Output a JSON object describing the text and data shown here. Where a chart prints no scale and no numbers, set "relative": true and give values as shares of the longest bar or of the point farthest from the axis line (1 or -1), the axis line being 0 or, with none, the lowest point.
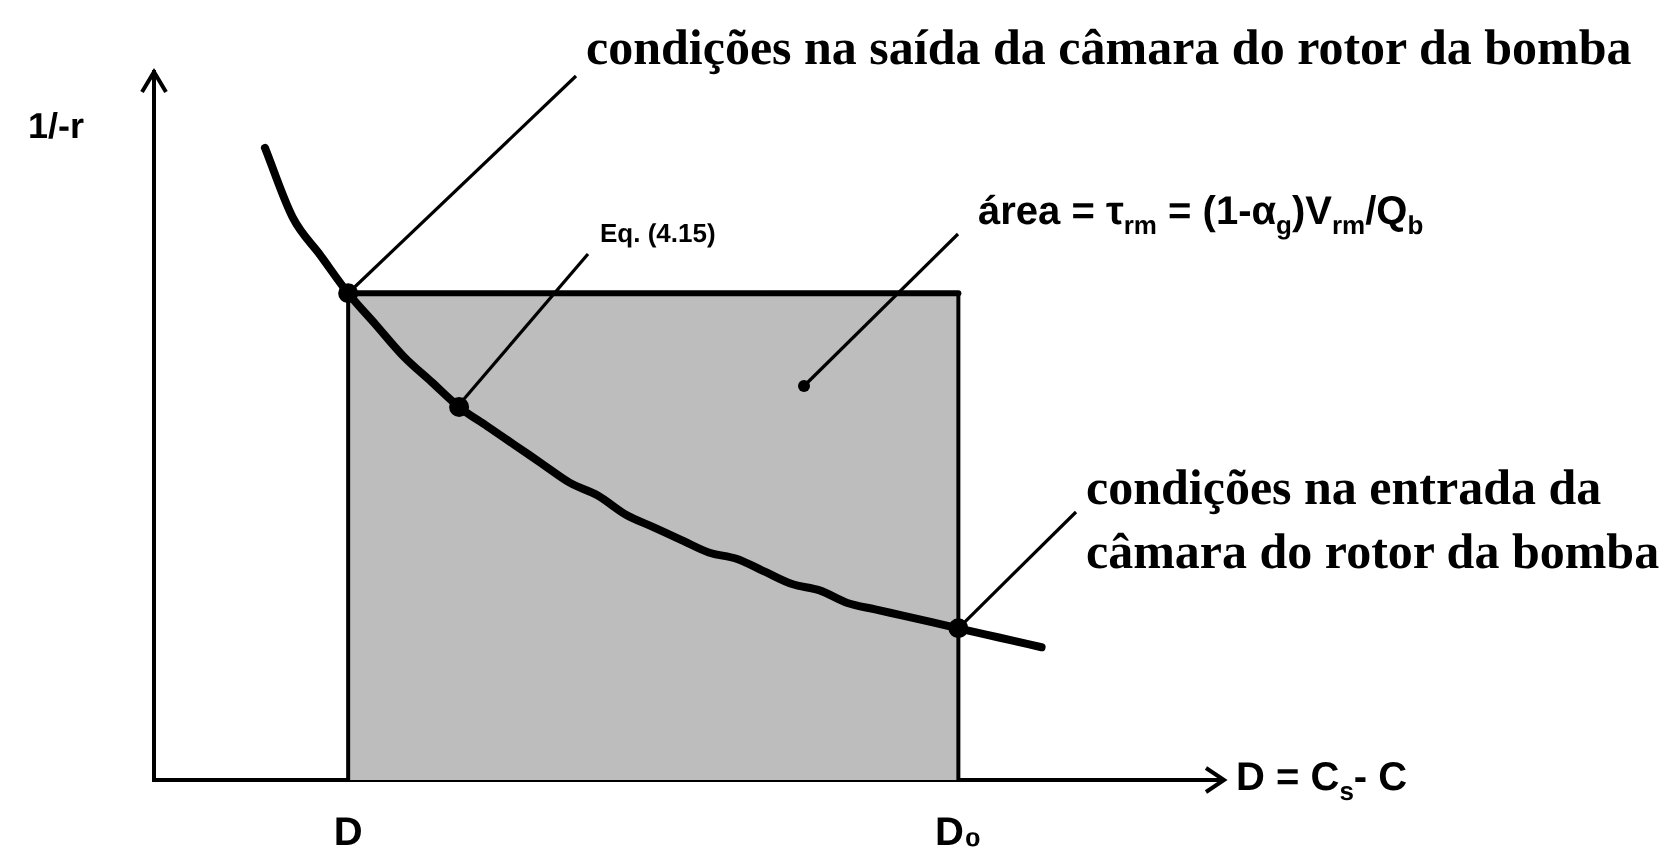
{
  "chart_data": {
    "type": "line",
    "relative": true,
    "xlabel": "D = C$_{s}$- C",
    "ylabel": "1/-r",
    "categories": [
      null,
      null,
      null,
      null,
      null,
      null,
      null,
      "D",
      null,
      null,
      null,
      null,
      null,
      null,
      null,
      null,
      null,
      null,
      null,
      null,
      null,
      null,
      null,
      null,
      null,
      null,
      null,
      null,
      null,
      "D₀",
      null,
      null,
      null,
      null,
      null,
      null,
      null,
      null,
      null
    ],
    "series": [
      {
        "type": "area",
        "color": "#bdbdbd",
        "values": [
          null,
          null,
          null,
          null,
          null,
          null,
          null,
          0.77,
          0.77,
          0.77,
          0.77,
          0.77,
          0.77,
          0.77,
          0.77,
          0.77,
          0.77,
          0.77,
          0.77,
          0.77,
          0.77,
          0.77,
          0.77,
          0.77,
          0.77,
          0.77,
          0.77,
          0.77,
          0.77,
          0.77,
          null,
          null,
          null,
          null,
          null,
          null,
          null,
          null,
          null
        ]
      },
      {
        "type": "line",
        "color": "#000000",
        "values": [
          null,
          null,
          null,
          null,
          1,
          0.89,
          0.83,
          0.77,
          0.72,
          0.67,
          0.63,
          0.59,
          0.56,
          0.53,
          0.5,
          0.47,
          0.45,
          0.42,
          0.4,
          0.38,
          0.36,
          0.35,
          0.33,
          0.31,
          0.3,
          0.28,
          0.27,
          0.26,
          0.25,
          0.24,
          0.23,
          0.22,
          0.21,
          null,
          null,
          null,
          null,
          null,
          null
        ]
      },
      {
        "type": "scatter",
        "color": "#000000",
        "marker": "circle",
        "values": [
          null,
          null,
          null,
          null,
          null,
          null,
          null,
          0.77,
          null,
          null,
          null,
          0.59,
          null,
          null,
          null,
          null,
          null,
          null,
          null,
          null,
          null,
          null,
          null,
          null,
          null,
          null,
          null,
          null,
          null,
          0.24,
          null,
          null,
          null,
          null,
          null,
          null,
          null,
          null,
          null
        ]
      }
    ],
    "annotations": [
      {
        "text": "condições na saída da câmara do rotor da bomba",
        "x": "D",
        "y": 0.77
      },
      "Eq. (4.15)",
      "área = τ$_{rm}$ = (1-α$_{g}$)V$_{rm}$/Q$_{b}$",
      {
        "text": "condições na entrada da câmara do rotor da bomba",
        "x": "D₀",
        "y": 0.24
      }
    ]
  }
}
